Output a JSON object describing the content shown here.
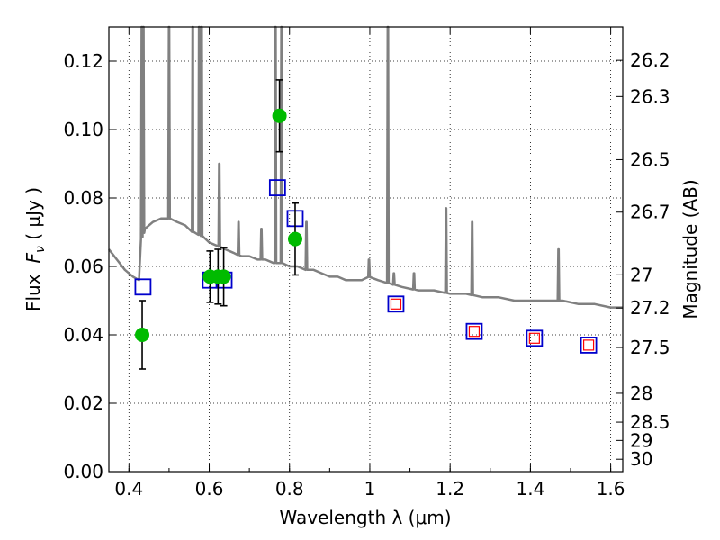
{
  "chart_data": {
    "type": "scatter",
    "xlabel": "Wavelength  λ (μm)",
    "ylabel_prefix": "Flux",
    "ylabel_symbol": "F",
    "ylabel_subscript": "ν",
    "ylabel_suffix": " (  μJy )",
    "y2label": "Magnitude (AB)",
    "xlim": [
      0.35,
      1.63
    ],
    "ylim": [
      0.0,
      0.13
    ],
    "grid": true,
    "x_ticks": [
      {
        "value": 0.4,
        "label": "0.4"
      },
      {
        "value": 0.6,
        "label": "0.6"
      },
      {
        "value": 0.8,
        "label": "0.8"
      },
      {
        "value": 1.0,
        "label": "1"
      },
      {
        "value": 1.2,
        "label": "1.2"
      },
      {
        "value": 1.4,
        "label": "1.4"
      },
      {
        "value": 1.6,
        "label": "1.6"
      }
    ],
    "y_ticks": [
      {
        "value": 0.0,
        "label": "0.00"
      },
      {
        "value": 0.02,
        "label": "0.02"
      },
      {
        "value": 0.04,
        "label": "0.04"
      },
      {
        "value": 0.06,
        "label": "0.06"
      },
      {
        "value": 0.08,
        "label": "0.08"
      },
      {
        "value": 0.1,
        "label": "0.10"
      },
      {
        "value": 0.12,
        "label": "0.12"
      }
    ],
    "y2_ticks": [
      {
        "mag": 26.2,
        "label": "26.2"
      },
      {
        "mag": 26.3,
        "label": "26.3"
      },
      {
        "mag": 26.5,
        "label": "26.5"
      },
      {
        "mag": 26.7,
        "label": "26.7"
      },
      {
        "mag": 27.0,
        "label": "27"
      },
      {
        "mag": 27.2,
        "label": "27.2"
      },
      {
        "mag": 27.5,
        "label": "27.5"
      },
      {
        "mag": 28.0,
        "label": "28"
      },
      {
        "mag": 28.5,
        "label": "28.5"
      },
      {
        "mag": 29.0,
        "label": "29"
      },
      {
        "mag": 30.0,
        "label": "30"
      }
    ],
    "model_spectrum": {
      "color": "#808080",
      "continuum": [
        [
          0.35,
          0.065
        ],
        [
          0.37,
          0.062
        ],
        [
          0.39,
          0.059
        ],
        [
          0.41,
          0.057
        ],
        [
          0.425,
          0.056
        ],
        [
          0.43,
          0.068
        ],
        [
          0.44,
          0.071
        ],
        [
          0.46,
          0.073
        ],
        [
          0.48,
          0.074
        ],
        [
          0.5,
          0.074
        ],
        [
          0.52,
          0.073
        ],
        [
          0.54,
          0.072
        ],
        [
          0.56,
          0.07
        ],
        [
          0.58,
          0.069
        ],
        [
          0.6,
          0.067
        ],
        [
          0.62,
          0.066
        ],
        [
          0.64,
          0.065
        ],
        [
          0.66,
          0.064
        ],
        [
          0.68,
          0.063
        ],
        [
          0.7,
          0.063
        ],
        [
          0.72,
          0.062
        ],
        [
          0.74,
          0.062
        ],
        [
          0.76,
          0.061
        ],
        [
          0.78,
          0.061
        ],
        [
          0.8,
          0.06
        ],
        [
          0.82,
          0.06
        ],
        [
          0.84,
          0.059
        ],
        [
          0.86,
          0.059
        ],
        [
          0.88,
          0.058
        ],
        [
          0.9,
          0.057
        ],
        [
          0.92,
          0.057
        ],
        [
          0.94,
          0.056
        ],
        [
          0.96,
          0.056
        ],
        [
          0.98,
          0.056
        ],
        [
          1.0,
          0.057
        ],
        [
          1.02,
          0.056
        ],
        [
          1.05,
          0.055
        ],
        [
          1.08,
          0.054
        ],
        [
          1.12,
          0.053
        ],
        [
          1.16,
          0.053
        ],
        [
          1.2,
          0.052
        ],
        [
          1.24,
          0.052
        ],
        [
          1.28,
          0.051
        ],
        [
          1.32,
          0.051
        ],
        [
          1.36,
          0.05
        ],
        [
          1.4,
          0.05
        ],
        [
          1.44,
          0.05
        ],
        [
          1.48,
          0.05
        ],
        [
          1.52,
          0.049
        ],
        [
          1.56,
          0.049
        ],
        [
          1.6,
          0.048
        ],
        [
          1.63,
          0.048
        ]
      ],
      "emission_lines": [
        {
          "x": 0.432,
          "peak": 0.13
        },
        {
          "x": 0.436,
          "peak": 0.13
        },
        {
          "x": 0.5,
          "peak": 0.13
        },
        {
          "x": 0.559,
          "peak": 0.13
        },
        {
          "x": 0.575,
          "peak": 0.13
        },
        {
          "x": 0.581,
          "peak": 0.13
        },
        {
          "x": 0.625,
          "peak": 0.09
        },
        {
          "x": 0.673,
          "peak": 0.073
        },
        {
          "x": 0.73,
          "peak": 0.071
        },
        {
          "x": 0.765,
          "peak": 0.13
        },
        {
          "x": 0.78,
          "peak": 0.13
        },
        {
          "x": 0.842,
          "peak": 0.073
        },
        {
          "x": 0.998,
          "peak": 0.062
        },
        {
          "x": 1.045,
          "peak": 0.13
        },
        {
          "x": 1.06,
          "peak": 0.058
        },
        {
          "x": 1.11,
          "peak": 0.058
        },
        {
          "x": 1.19,
          "peak": 0.077
        },
        {
          "x": 1.255,
          "peak": 0.073
        },
        {
          "x": 1.47,
          "peak": 0.065
        }
      ]
    },
    "observed": {
      "color": "#00bb00",
      "points": [
        {
          "x": 0.433,
          "y": 0.04,
          "err": 0.01
        },
        {
          "x": 0.602,
          "y": 0.057,
          "err": 0.0075
        },
        {
          "x": 0.622,
          "y": 0.057,
          "err": 0.008
        },
        {
          "x": 0.636,
          "y": 0.057,
          "err": 0.0085
        },
        {
          "x": 0.775,
          "y": 0.104,
          "err": 0.0105
        },
        {
          "x": 0.814,
          "y": 0.068,
          "err": 0.0105
        }
      ]
    },
    "model_photometry_blue": {
      "color": "#0000cc",
      "points": [
        {
          "x": 0.435,
          "y": 0.054
        },
        {
          "x": 0.603,
          "y": 0.056
        },
        {
          "x": 0.637,
          "y": 0.056
        },
        {
          "x": 0.77,
          "y": 0.083
        },
        {
          "x": 0.814,
          "y": 0.074
        },
        {
          "x": 1.065,
          "y": 0.049
        },
        {
          "x": 1.26,
          "y": 0.041
        },
        {
          "x": 1.41,
          "y": 0.039
        },
        {
          "x": 1.545,
          "y": 0.037
        }
      ]
    },
    "model_photometry_red": {
      "color": "#ff0000",
      "points": [
        {
          "x": 1.065,
          "y": 0.049
        },
        {
          "x": 1.26,
          "y": 0.041
        },
        {
          "x": 1.41,
          "y": 0.039
        },
        {
          "x": 1.545,
          "y": 0.037
        }
      ]
    }
  }
}
